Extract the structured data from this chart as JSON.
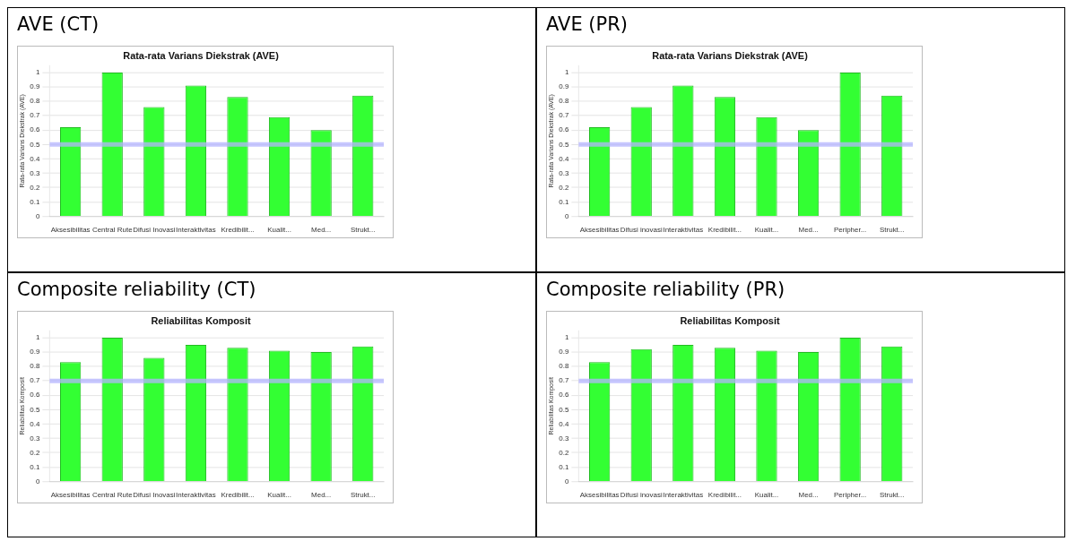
{
  "chart_data": [
    {
      "type": "bar",
      "title": "AVE (CT)",
      "subtitle": "Rata-rata Varians Diekstrak (AVE)",
      "ylabel": "Rata-rata Varians Diekstrak (AVE)",
      "categories": [
        "Aksesibilitas",
        "Central Rute",
        "Difusi Inovasi",
        "Interaktivitas",
        "Kredibilit...",
        "Kualit...",
        "Med...",
        "Strukt..."
      ],
      "values": [
        0.62,
        1.0,
        0.76,
        0.91,
        0.83,
        0.69,
        0.6,
        0.84
      ],
      "color": "#33ff33",
      "ylim": [
        0,
        1.05
      ],
      "yticks": [
        0,
        0.1,
        0.2,
        0.3,
        0.4,
        0.5,
        0.6,
        0.7,
        0.8,
        0.9,
        1
      ],
      "grid": "y",
      "ref_lines": [
        {
          "axis": "y",
          "value": 0.5,
          "color": "#b4b4ff"
        }
      ]
    },
    {
      "type": "bar",
      "title": "AVE (PR)",
      "subtitle": "Rata-rata Varians Diekstrak (AVE)",
      "ylabel": "Rata-rata Varians Diekstrak (AVE)",
      "categories": [
        "Aksesibilitas",
        "Difusi inovasi",
        "Interaktivitas",
        "Kredibilit...",
        "Kualit...",
        "Med...",
        "Peripher...",
        "Strukt..."
      ],
      "values": [
        0.62,
        0.76,
        0.91,
        0.83,
        0.69,
        0.6,
        1.0,
        0.84
      ],
      "color": "#33ff33",
      "ylim": [
        0,
        1.05
      ],
      "yticks": [
        0,
        0.1,
        0.2,
        0.3,
        0.4,
        0.5,
        0.6,
        0.7,
        0.8,
        0.9,
        1
      ],
      "grid": "y",
      "ref_lines": [
        {
          "axis": "y",
          "value": 0.5,
          "color": "#b4b4ff"
        }
      ]
    },
    {
      "type": "bar",
      "title": "Composite reliability (CT)",
      "subtitle": "Reliabilitas Komposit",
      "ylabel": "Reliabilitas Komposit",
      "categories": [
        "Aksesibilitas",
        "Central Rute",
        "Difusi Inovasi",
        "Interaktivitas",
        "Kredibilit...",
        "Kualit...",
        "Med...",
        "Strukt..."
      ],
      "values": [
        0.83,
        1.0,
        0.86,
        0.95,
        0.93,
        0.91,
        0.9,
        0.94
      ],
      "color": "#33ff33",
      "ylim": [
        0,
        1.05
      ],
      "yticks": [
        0,
        0.1,
        0.2,
        0.3,
        0.4,
        0.5,
        0.6,
        0.7,
        0.8,
        0.9,
        1
      ],
      "grid": "y",
      "ref_lines": [
        {
          "axis": "y",
          "value": 0.7,
          "color": "#b4b4ff"
        }
      ]
    },
    {
      "type": "bar",
      "title": "Composite reliability (PR)",
      "subtitle": "Reliabilitas Komposit",
      "ylabel": "Reliabilitas Komposit",
      "categories": [
        "Aksesibilitas",
        "Difusi inovasi",
        "Interaktivitas",
        "Kredibilit...",
        "Kualit...",
        "Med...",
        "Peripher...",
        "Strukt..."
      ],
      "values": [
        0.83,
        0.92,
        0.95,
        0.93,
        0.91,
        0.9,
        1.0,
        0.94
      ],
      "color": "#33ff33",
      "ylim": [
        0,
        1.05
      ],
      "yticks": [
        0,
        0.1,
        0.2,
        0.3,
        0.4,
        0.5,
        0.6,
        0.7,
        0.8,
        0.9,
        1
      ],
      "grid": "y",
      "ref_lines": [
        {
          "axis": "y",
          "value": 0.7,
          "color": "#b4b4ff"
        }
      ]
    }
  ]
}
